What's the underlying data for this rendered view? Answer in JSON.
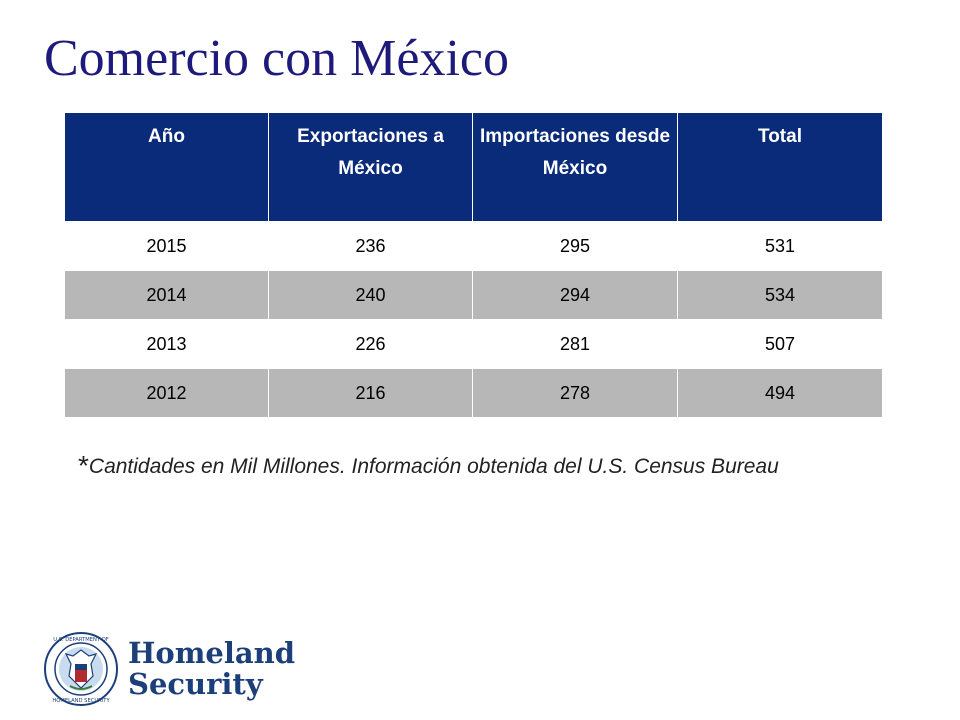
{
  "slide": {
    "title": "Comercio con México"
  },
  "table": {
    "headers": [
      "Año",
      "Exportaciones a México",
      "Importaciones desde México",
      "Total"
    ],
    "rows": [
      [
        "2015",
        "236",
        "295",
        "531"
      ],
      [
        "2014",
        "240",
        "294",
        "534"
      ],
      [
        "2013",
        "226",
        "281",
        "507"
      ],
      [
        "2012",
        "216",
        "278",
        "494"
      ]
    ]
  },
  "footnote": {
    "star": "*",
    "text": "Cantidades en Mil Millones.  Información obtenida del U.S. Census Bureau"
  },
  "logo": {
    "line1": "Homeland",
    "line2": "Security",
    "seal_text": "U.S. DEPARTMENT OF HOMELAND SECURITY"
  },
  "colors": {
    "title": "#1e1a7c",
    "header_bg": "#0a2a7a",
    "row_alt": "#b7b7b7",
    "brand": "#1c3f7a"
  }
}
